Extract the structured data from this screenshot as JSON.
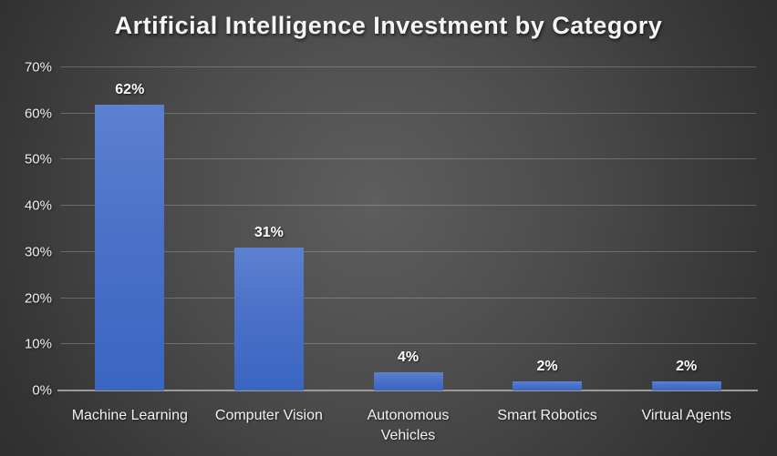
{
  "title": "Artificial Intelligence Investment by Category",
  "chart_data": {
    "type": "bar",
    "title": "Artificial Intelligence Investment by Category",
    "categories": [
      "Machine Learning",
      "Computer Vision",
      "Autonomous Vehicles",
      "Smart Robotics",
      "Virtual Agents"
    ],
    "values": [
      62,
      31,
      4,
      2,
      2
    ],
    "data_labels": [
      "62%",
      "31%",
      "4%",
      "2%",
      "2%"
    ],
    "xlabel": "",
    "ylabel": "",
    "ylim": [
      0,
      70
    ],
    "ytick_step": 10,
    "ytick_labels": [
      "0%",
      "10%",
      "20%",
      "30%",
      "40%",
      "50%",
      "60%",
      "70%"
    ],
    "grid": true,
    "legend": false,
    "colors": {
      "bar_gradient_top": "#5d81d1",
      "bar_gradient_bottom": "#3a66c2",
      "gridline": "rgba(255,255,255,0.22)",
      "axis_line": "#9b9b9b",
      "text": "#f2f2f2",
      "background_center": "#5e5e5e",
      "background_edge": "#262626"
    }
  }
}
